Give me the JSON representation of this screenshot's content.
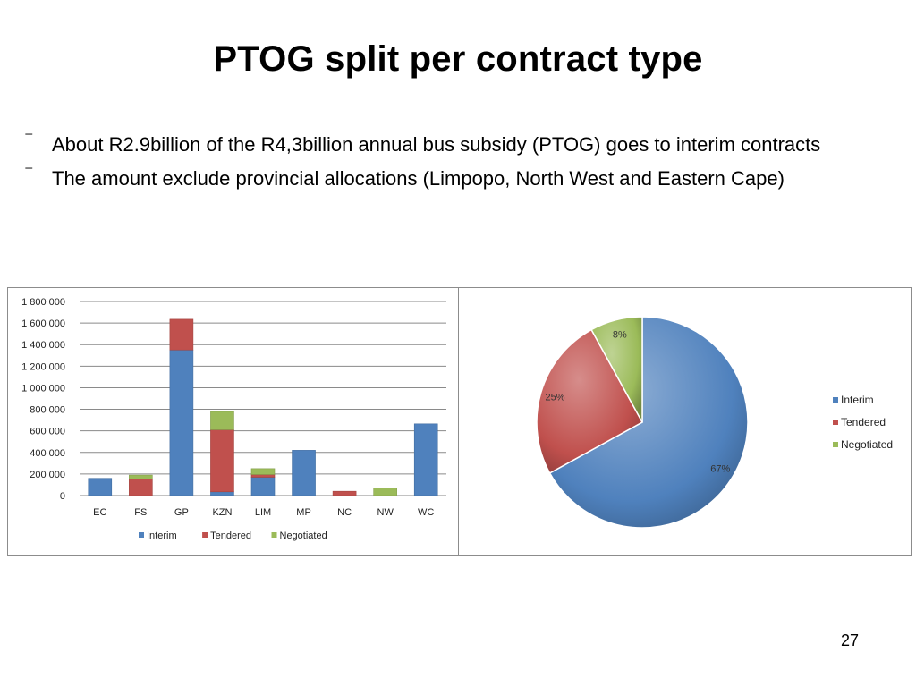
{
  "title": "PTOG split per contract type",
  "bullets": [
    {
      "mark": "⁻",
      "text": "About R2.9billion of the R4,3billion annual bus subsidy (PTOG) goes to interim contracts"
    },
    {
      "mark": "⁻",
      "text": "The amount exclude provincial allocations (Limpopo, North West and Eastern Cape)"
    }
  ],
  "page_number": "27",
  "colors": {
    "interim": "#4f81bd",
    "tendered": "#c0504d",
    "negotiated": "#9bbb59"
  },
  "chart_data": [
    {
      "type": "bar",
      "stacked": true,
      "categories": [
        "EC",
        "FS",
        "GP",
        "KZN",
        "LIM",
        "MP",
        "NC",
        "NW",
        "WC"
      ],
      "series": [
        {
          "name": "Interim",
          "values": [
            160000,
            0,
            1350000,
            35000,
            170000,
            420000,
            0,
            0,
            665000
          ]
        },
        {
          "name": "Tendered",
          "values": [
            0,
            155000,
            285000,
            575000,
            25000,
            0,
            40000,
            0,
            0
          ]
        },
        {
          "name": "Negotiated",
          "values": [
            0,
            35000,
            0,
            170000,
            55000,
            0,
            0,
            70000,
            0
          ]
        }
      ],
      "ylim": [
        0,
        1800000
      ],
      "yticks": [
        "0",
        "200 000",
        "400 000",
        "600 000",
        "800 000",
        "1 000 000",
        "1 200 000",
        "1 400 000",
        "1 600 000",
        "1 800 000"
      ],
      "grid": true,
      "legend": "bottom"
    },
    {
      "type": "pie",
      "slices": [
        {
          "name": "Interim",
          "value": 67,
          "label": "67%"
        },
        {
          "name": "Tendered",
          "value": 25,
          "label": "25%"
        },
        {
          "name": "Negotiated",
          "value": 8,
          "label": "8%"
        }
      ],
      "legend": "right"
    }
  ]
}
